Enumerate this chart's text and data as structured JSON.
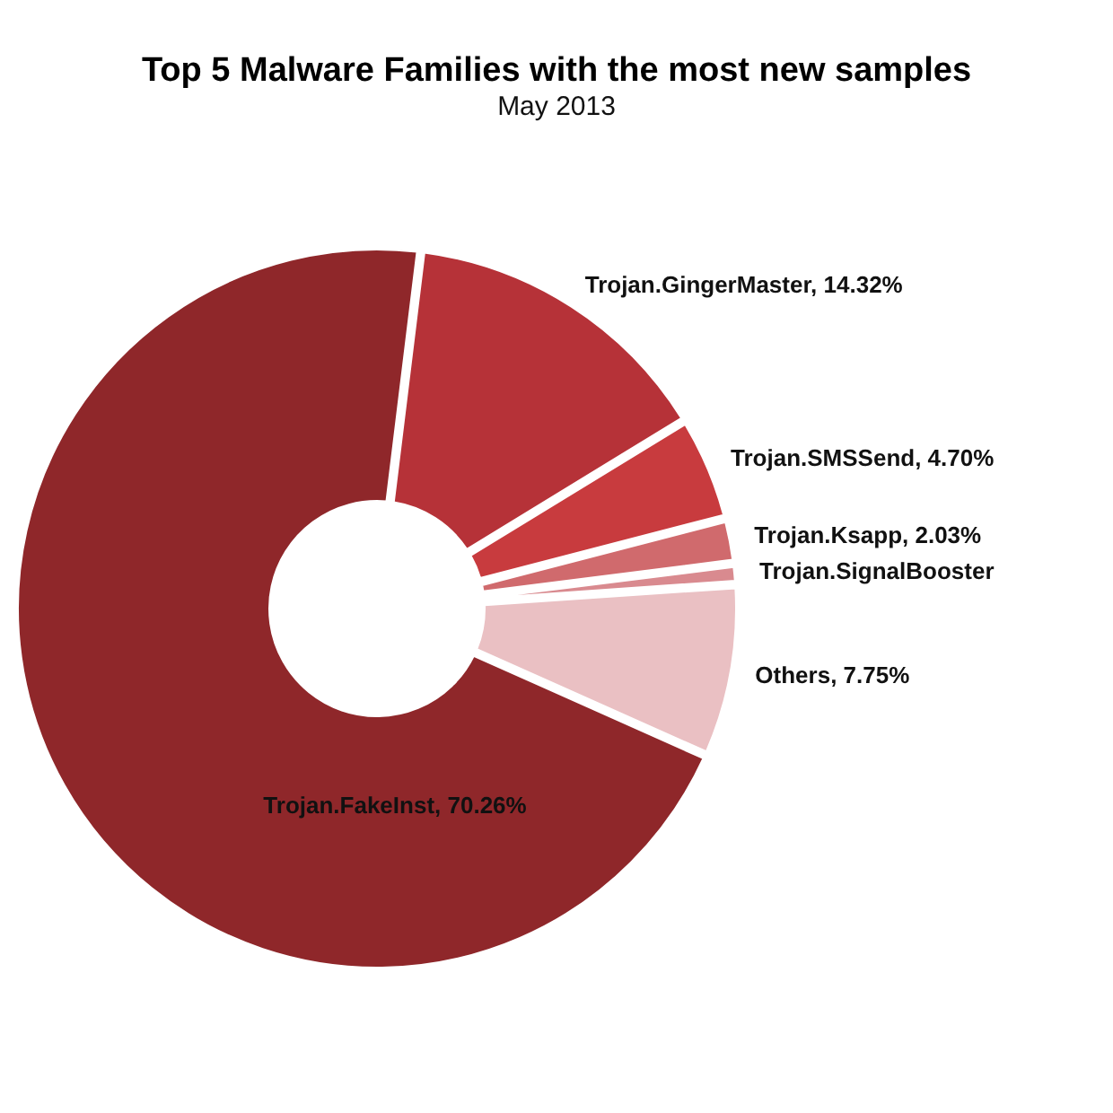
{
  "chart_data": {
    "type": "donut",
    "title": "Top 5 Malware Families with the most new samples",
    "subtitle": "May 2013",
    "categories": [
      "Trojan.GingerMaster",
      "Trojan.SMSSend",
      "Trojan.Ksapp",
      "Trojan.SignalBooster",
      "Others",
      "Trojan.FakeInst"
    ],
    "values": [
      14.32,
      4.7,
      2.03,
      0.94,
      7.75,
      70.26
    ],
    "value_labels": [
      "14.32%",
      "4.70%",
      "2.03%",
      null,
      "7.75%",
      "70.26%"
    ],
    "colors": [
      "#b63238",
      "#c83b3e",
      "#d06a6d",
      "#d98a8f",
      "#eac0c3",
      "#8f272a"
    ]
  }
}
